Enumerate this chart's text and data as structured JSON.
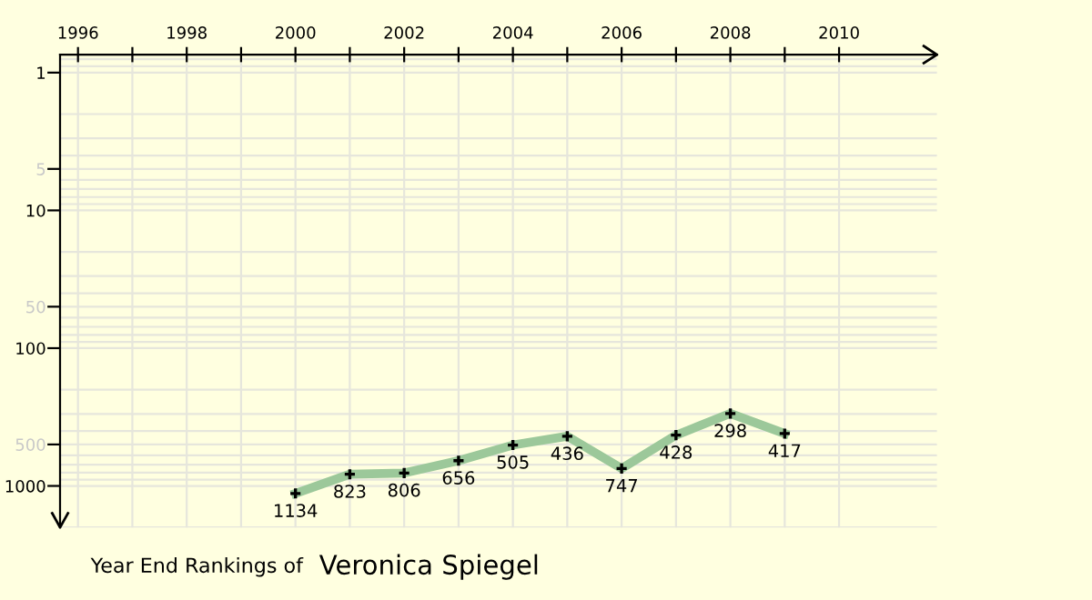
{
  "chart_data": {
    "type": "line",
    "x": [
      2000,
      2001,
      2002,
      2003,
      2004,
      2005,
      2006,
      2007,
      2008,
      2009
    ],
    "series": [
      {
        "color": "#9cc89a",
        "values": [
          1134,
          823,
          806,
          656,
          505,
          436,
          747,
          428,
          298,
          417
        ]
      }
    ],
    "log": "y",
    "ylim": [
      2000,
      0.74
    ],
    "yticks": [
      1,
      {
        "value": 5,
        "label": "5"
      },
      10,
      {
        "value": 50,
        "label": "50"
      },
      100,
      {
        "value": 500,
        "label": "500"
      },
      1000
    ],
    "xlim": [
      1995.67,
      2011.8
    ],
    "xticks": [
      1996,
      {
        "value": 1997,
        "label": null
      },
      1998,
      {
        "value": 1999,
        "label": null
      },
      2000,
      {
        "value": 2001,
        "label": null
      },
      2002,
      {
        "value": 2003,
        "label": null
      },
      2004,
      {
        "value": 2005,
        "label": null
      },
      2006,
      {
        "value": 2007,
        "label": null
      },
      2008,
      {
        "value": 2009,
        "label": null
      },
      2010
    ],
    "grid": true,
    "marker": "cross",
    "line_style": "solid",
    "data_labels": true,
    "annotations": [
      "Year End Rankings of ",
      "Veronica Spiegel"
    ]
  }
}
